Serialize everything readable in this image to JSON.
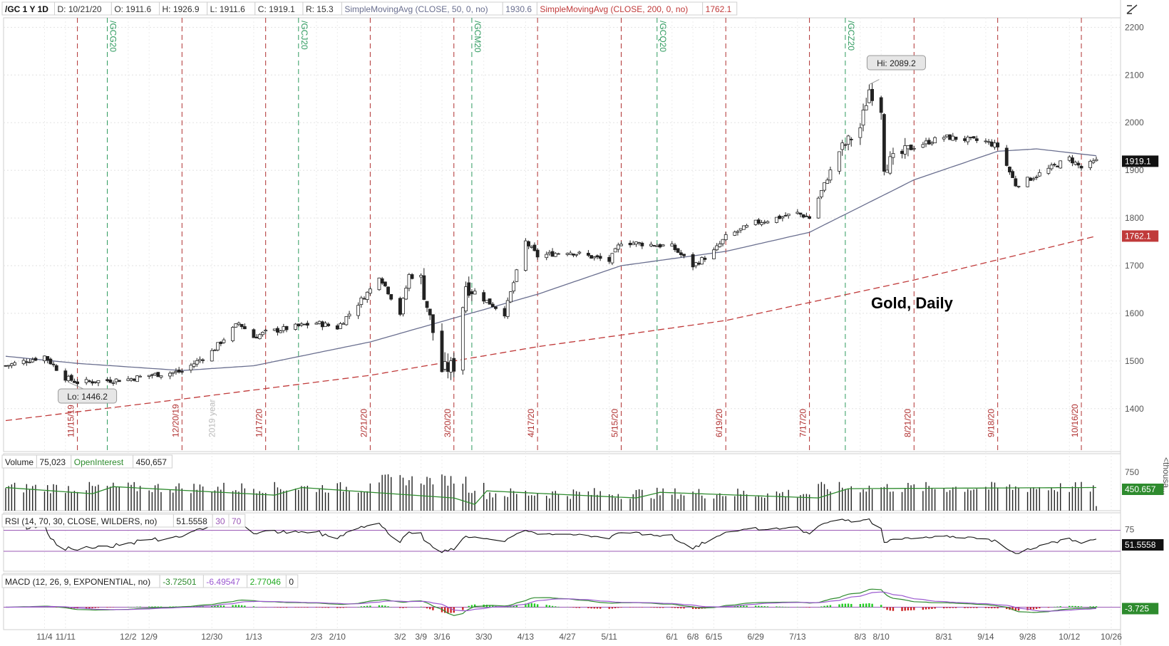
{
  "header": {
    "symbol": "/GC 1 Y 1D",
    "date": "D: 10/21/20",
    "open": "O: 1911.6",
    "high": "H: 1926.9",
    "low": "L: 1911.6",
    "close": "C: 1919.1",
    "range": "R: 15.3",
    "sma50_label": "SimpleMovingAvg (CLOSE, 50, 0, no)",
    "sma50_value": "1930.6",
    "sma200_label": "SimpleMovingAvg (CLOSE, 200, 0, no)",
    "sma200_value": "1762.1"
  },
  "colors": {
    "up_candle": "#ffffff",
    "down_candle": "#222222",
    "sma50": "#6a6f8f",
    "sma200": "#c03a3a",
    "expiry_line": "#b03030",
    "contract_line": "#2e9a5e",
    "open_interest": "#2e8b2e",
    "rsi": "#111111",
    "rsi_overbought": "#c04040",
    "rsi_band": "#9b59b6",
    "macd_value": "#2e8b2e",
    "macd_avg": "#9b59d0",
    "macd_hist_pos": "#22cc22",
    "macd_hist_neg": "#cc2222"
  },
  "chart_data": {
    "type": "candlestick",
    "title": "Gold, Daily",
    "price_axis": {
      "ylim": [
        1310,
        2220
      ],
      "ticks": [
        "2200",
        "2100",
        "2000",
        "1900",
        "1800",
        "1700",
        "1600",
        "1500",
        "1400"
      ]
    },
    "x_ticks": [
      "11/4",
      "11/11",
      "12/2",
      "12/9",
      "12/30",
      "1/13",
      "2/3",
      "2/10",
      "3/2",
      "3/9",
      "3/16",
      "3/30",
      "4/13",
      "4/27",
      "5/11",
      "6/1",
      "6/8",
      "6/15",
      "6/29",
      "7/13",
      "8/3",
      "8/10",
      "8/31",
      "9/14",
      "9/28",
      "10/12",
      "10/26"
    ],
    "price_keypoints": [
      [
        "10/22/19",
        1490
      ],
      [
        "11/4/19",
        1510
      ],
      [
        "11/11/19",
        1465
      ],
      [
        "11/15/19",
        1455
      ],
      [
        "12/2/19",
        1462
      ],
      [
        "12/9/19",
        1470
      ],
      [
        "12/20/19",
        1478
      ],
      [
        "12/30/19",
        1520
      ],
      [
        "1/8/20",
        1580
      ],
      [
        "1/13/20",
        1550
      ],
      [
        "1/17/20",
        1560
      ],
      [
        "2/3/20",
        1580
      ],
      [
        "2/10/20",
        1570
      ],
      [
        "2/21/20",
        1650
      ],
      [
        "2/24/20",
        1680
      ],
      [
        "3/2/20",
        1600
      ],
      [
        "3/5/20",
        1680
      ],
      [
        "3/9/20",
        1670
      ],
      [
        "3/16/20",
        1480
      ],
      [
        "3/20/20",
        1490
      ],
      [
        "3/24/20",
        1660
      ],
      [
        "3/30/20",
        1630
      ],
      [
        "4/6/20",
        1600
      ],
      [
        "4/13/20",
        1750
      ],
      [
        "4/17/20",
        1720
      ],
      [
        "4/27/20",
        1730
      ],
      [
        "5/11/20",
        1710
      ],
      [
        "5/15/20",
        1750
      ],
      [
        "6/1/20",
        1740
      ],
      [
        "6/8/20",
        1700
      ],
      [
        "6/15/20",
        1730
      ],
      [
        "6/19/20",
        1760
      ],
      [
        "6/29/20",
        1790
      ],
      [
        "7/13/20",
        1810
      ],
      [
        "7/17/20",
        1800
      ],
      [
        "7/27/20",
        1940
      ],
      [
        "8/3/20",
        1990
      ],
      [
        "8/6/20",
        2070
      ],
      [
        "8/10/20",
        2030
      ],
      [
        "8/11/20",
        1910
      ],
      [
        "8/21/20",
        1950
      ],
      [
        "8/31/20",
        1970
      ],
      [
        "9/14/20",
        1960
      ],
      [
        "9/18/20",
        1950
      ],
      [
        "9/24/20",
        1870
      ],
      [
        "9/28/20",
        1880
      ],
      [
        "10/12/20",
        1925
      ],
      [
        "10/16/20",
        1905
      ],
      [
        "10/21/20",
        1919.1
      ]
    ],
    "sma50_keypoints": [
      [
        "10/22/19",
        1510
      ],
      [
        "11/15/19",
        1495
      ],
      [
        "12/20/19",
        1480
      ],
      [
        "1/13/20",
        1490
      ],
      [
        "2/21/20",
        1540
      ],
      [
        "3/20/20",
        1590
      ],
      [
        "4/17/20",
        1640
      ],
      [
        "5/15/20",
        1700
      ],
      [
        "6/19/20",
        1730
      ],
      [
        "7/17/20",
        1770
      ],
      [
        "8/21/20",
        1880
      ],
      [
        "9/18/20",
        1940
      ],
      [
        "10/1/20",
        1945
      ],
      [
        "10/21/20",
        1930.6
      ]
    ],
    "sma200_keypoints": [
      [
        "10/22/19",
        1375
      ],
      [
        "12/20/19",
        1420
      ],
      [
        "2/21/20",
        1470
      ],
      [
        "4/17/20",
        1530
      ],
      [
        "6/19/20",
        1585
      ],
      [
        "8/21/20",
        1670
      ],
      [
        "10/21/20",
        1762.1
      ]
    ],
    "high_label": "Hi: 2089.2",
    "low_label": "Lo: 1446.2",
    "last_price_label": "1919.1",
    "sma200_price_label": "1762.1",
    "expiry_markers": [
      "11/15/19",
      "12/20/19",
      "1/17/20",
      "2/21/20",
      "3/20/20",
      "4/17/20",
      "5/15/20",
      "6/19/20",
      "7/17/20",
      "8/21/20",
      "9/18/20",
      "10/16/20"
    ],
    "contract_markers": [
      [
        "11/25/19",
        "/GCG20"
      ],
      [
        "1/28/20",
        "/GCJ20"
      ],
      [
        "3/26/20",
        "/GCM20"
      ],
      [
        "5/27/20",
        "/GCQ20"
      ],
      [
        "7/29/20",
        "/GCZ20"
      ]
    ],
    "year_marker": "2019 year"
  },
  "volume_panel": {
    "label": "Volume",
    "volume_value": "75,023",
    "oi_label": "OpenInterest",
    "oi_value": "450,657",
    "axis_tick": "750",
    "oi_badge": "450.657",
    "units_label": "<thousa..."
  },
  "rsi_panel": {
    "label": "RSI (14, 70, 30, CLOSE, WILDERS, no)",
    "value": "51.5558",
    "level30": "30",
    "level70": "70",
    "axis_tick": "75",
    "badge": "51.5558"
  },
  "macd_panel": {
    "label": "MACD (12, 26, 9, EXPONENTIAL, no)",
    "value": "-3.72501",
    "avg": "-6.49547",
    "diff": "2.77046",
    "zero": "0",
    "badge": "-3.725"
  }
}
